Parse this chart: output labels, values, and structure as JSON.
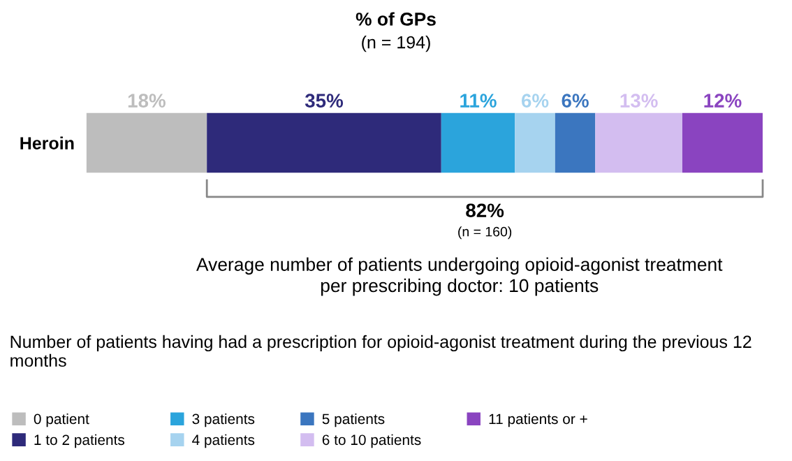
{
  "chart_data": {
    "type": "bar",
    "orientation": "horizontal",
    "stacked": true,
    "title": "% of GPs",
    "subtitle": "(n = 194)",
    "categories": [
      "Heroin"
    ],
    "legend_title": "Number of patients having had a prescription for opioid-agonist treatment during the previous 12 months",
    "legend": "bottom",
    "grid": false,
    "series": [
      {
        "name": "0 patient",
        "color": "#bdbdbd",
        "values": [
          18
        ],
        "value_labels": [
          "18%"
        ]
      },
      {
        "name": "1 to 2 patients",
        "color": "#2e2a7a",
        "values": [
          35
        ],
        "value_labels": [
          "35%"
        ]
      },
      {
        "name": "3 patients",
        "color": "#2ba4dc",
        "values": [
          11
        ],
        "value_labels": [
          "11%"
        ]
      },
      {
        "name": "4 patients",
        "color": "#a6d3ef",
        "values": [
          6
        ],
        "value_labels": [
          "6%"
        ]
      },
      {
        "name": "5 patients",
        "color": "#3b76bf",
        "values": [
          6
        ],
        "value_labels": [
          "6%"
        ]
      },
      {
        "name": "6 to 10 patients",
        "color": "#d3bdf0",
        "values": [
          13
        ],
        "value_labels": [
          "13%"
        ]
      },
      {
        "name": "11 patients or +",
        "color": "#8a44c0",
        "values": [
          12
        ],
        "value_labels": [
          "12%"
        ]
      }
    ],
    "annotations": [
      "82%",
      "(n = 160)",
      "Average number of patients undergoing opioid-agonist treatment\nper prescribing doctor: 10 patients"
    ]
  }
}
